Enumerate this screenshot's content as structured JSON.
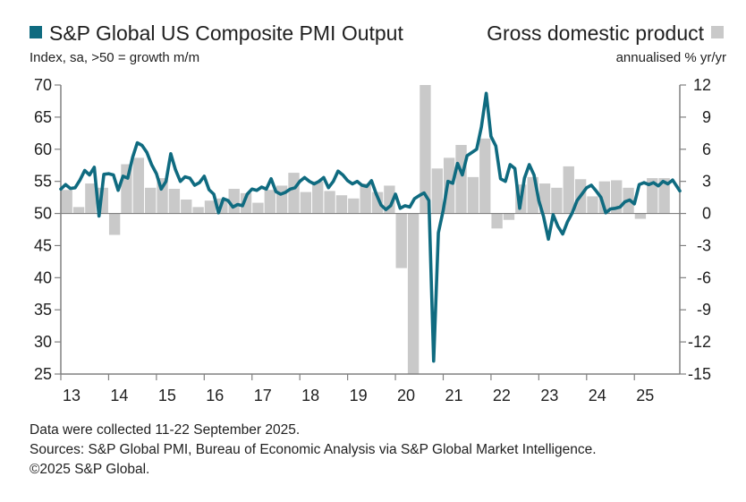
{
  "chart_data": {
    "type": "bar+line",
    "title_left": "S&P Global US Composite PMI Output",
    "subtitle_left": "Index, sa, >50 = growth m/m",
    "title_right": "Gross domestic product",
    "subtitle_right": "annualised % yr/yr",
    "colors": {
      "line": "#0f6b80",
      "bars": "#c9c9c9",
      "axis": "#808080"
    },
    "x_ticks": [
      "13",
      "14",
      "15",
      "16",
      "17",
      "18",
      "19",
      "20",
      "21",
      "22",
      "23",
      "24",
      "25"
    ],
    "x_range": [
      2013.0,
      2025.95
    ],
    "y_left": {
      "label": "Index",
      "ylim": [
        25,
        70
      ],
      "ticks": [
        "70",
        "65",
        "60",
        "55",
        "50",
        "45",
        "40",
        "35",
        "30",
        "25"
      ]
    },
    "y_right": {
      "label": "% yr/yr",
      "ylim": [
        -15,
        12
      ],
      "ticks": [
        "12",
        "9",
        "6",
        "3",
        "0",
        "-3",
        "-6",
        "-9",
        "-12",
        "-15"
      ]
    },
    "series": [
      {
        "name": "Gross domestic product",
        "axis": "right",
        "kind": "bar",
        "quarters": [
          "2013Q1",
          "2013Q2",
          "2013Q3",
          "2013Q4",
          "2014Q1",
          "2014Q2",
          "2014Q3",
          "2014Q4",
          "2015Q1",
          "2015Q2",
          "2015Q3",
          "2015Q4",
          "2016Q1",
          "2016Q2",
          "2016Q3",
          "2016Q4",
          "2017Q1",
          "2017Q2",
          "2017Q3",
          "2017Q4",
          "2018Q1",
          "2018Q2",
          "2018Q3",
          "2018Q4",
          "2019Q1",
          "2019Q2",
          "2019Q3",
          "2019Q4",
          "2020Q1",
          "2020Q2",
          "2020Q3",
          "2020Q4",
          "2021Q1",
          "2021Q2",
          "2021Q3",
          "2021Q4",
          "2022Q1",
          "2022Q2",
          "2022Q3",
          "2022Q4",
          "2023Q1",
          "2023Q2",
          "2023Q3",
          "2023Q4",
          "2024Q1",
          "2024Q2",
          "2024Q3",
          "2024Q4",
          "2025Q1",
          "2025Q2",
          "2025Q3"
        ],
        "values": [
          2.2,
          0.6,
          2.8,
          2.4,
          -2.0,
          4.6,
          5.2,
          2.4,
          3.3,
          2.3,
          1.3,
          0.6,
          1.2,
          1.4,
          2.3,
          1.9,
          1.0,
          2.2,
          2.6,
          3.8,
          2.0,
          3.0,
          2.1,
          1.7,
          1.4,
          2.8,
          2.0,
          2.6,
          -5.1,
          -15.0,
          12.0,
          4.2,
          5.2,
          6.4,
          3.4,
          7.0,
          -1.4,
          -0.6,
          2.7,
          3.4,
          2.8,
          2.4,
          4.4,
          3.2,
          1.6,
          3.0,
          3.1,
          2.4,
          -0.5,
          3.3,
          3.3
        ]
      },
      {
        "name": "S&P Global US Composite PMI Output",
        "axis": "left",
        "kind": "line",
        "points": [
          [
            2013.0,
            53.8
          ],
          [
            2013.1,
            54.5
          ],
          [
            2013.2,
            53.9
          ],
          [
            2013.3,
            54.0
          ],
          [
            2013.4,
            55.2
          ],
          [
            2013.5,
            56.7
          ],
          [
            2013.6,
            56.0
          ],
          [
            2013.7,
            57.2
          ],
          [
            2013.8,
            49.6
          ],
          [
            2013.9,
            56.1
          ],
          [
            2014.0,
            56.2
          ],
          [
            2014.1,
            56.0
          ],
          [
            2014.2,
            53.6
          ],
          [
            2014.3,
            55.8
          ],
          [
            2014.4,
            55.5
          ],
          [
            2014.5,
            58.7
          ],
          [
            2014.6,
            61.0
          ],
          [
            2014.7,
            60.6
          ],
          [
            2014.8,
            59.5
          ],
          [
            2014.9,
            57.6
          ],
          [
            2015.0,
            56.2
          ],
          [
            2015.1,
            53.8
          ],
          [
            2015.2,
            55.0
          ],
          [
            2015.3,
            59.3
          ],
          [
            2015.4,
            56.8
          ],
          [
            2015.5,
            55.0
          ],
          [
            2015.6,
            55.7
          ],
          [
            2015.7,
            55.5
          ],
          [
            2015.8,
            54.4
          ],
          [
            2015.9,
            54.8
          ],
          [
            2016.0,
            55.8
          ],
          [
            2016.1,
            53.7
          ],
          [
            2016.2,
            53.0
          ],
          [
            2016.3,
            50.1
          ],
          [
            2016.4,
            52.3
          ],
          [
            2016.5,
            52.0
          ],
          [
            2016.6,
            51.0
          ],
          [
            2016.7,
            51.4
          ],
          [
            2016.8,
            51.2
          ],
          [
            2016.9,
            53.0
          ],
          [
            2017.0,
            53.8
          ],
          [
            2017.1,
            53.6
          ],
          [
            2017.2,
            54.1
          ],
          [
            2017.3,
            53.8
          ],
          [
            2017.4,
            55.4
          ],
          [
            2017.5,
            53.4
          ],
          [
            2017.6,
            53.0
          ],
          [
            2017.7,
            53.3
          ],
          [
            2017.8,
            53.8
          ],
          [
            2017.9,
            54.0
          ],
          [
            2018.0,
            55.0
          ],
          [
            2018.1,
            55.6
          ],
          [
            2018.2,
            55.0
          ],
          [
            2018.3,
            54.6
          ],
          [
            2018.4,
            55.0
          ],
          [
            2018.5,
            55.6
          ],
          [
            2018.6,
            54.0
          ],
          [
            2018.7,
            55.0
          ],
          [
            2018.8,
            56.6
          ],
          [
            2018.9,
            56.0
          ],
          [
            2019.0,
            55.1
          ],
          [
            2019.1,
            54.6
          ],
          [
            2019.2,
            55.0
          ],
          [
            2019.3,
            54.4
          ],
          [
            2019.4,
            54.2
          ],
          [
            2019.5,
            55.1
          ],
          [
            2019.6,
            53.0
          ],
          [
            2019.7,
            51.3
          ],
          [
            2019.8,
            50.6
          ],
          [
            2019.9,
            51.2
          ],
          [
            2020.0,
            53.0
          ],
          [
            2020.1,
            50.8
          ],
          [
            2020.2,
            51.2
          ],
          [
            2020.3,
            51.0
          ],
          [
            2020.4,
            52.3
          ],
          [
            2020.5,
            52.8
          ],
          [
            2020.6,
            53.2
          ],
          [
            2020.7,
            52.0
          ],
          [
            2020.8,
            27.0
          ],
          [
            2020.9,
            47.0
          ],
          [
            2021.0,
            50.5
          ],
          [
            2021.1,
            55.0
          ],
          [
            2021.2,
            54.7
          ],
          [
            2021.3,
            57.8
          ],
          [
            2021.4,
            56.0
          ],
          [
            2021.5,
            59.0
          ],
          [
            2021.6,
            59.5
          ],
          [
            2021.7,
            60.0
          ],
          [
            2021.8,
            63.5
          ],
          [
            2021.9,
            68.7
          ],
          [
            2022.0,
            62.0
          ],
          [
            2022.1,
            60.5
          ],
          [
            2022.2,
            55.4
          ],
          [
            2022.3,
            55.0
          ],
          [
            2022.4,
            57.6
          ],
          [
            2022.5,
            57.0
          ],
          [
            2022.6,
            50.8
          ],
          [
            2022.7,
            55.5
          ],
          [
            2022.8,
            57.6
          ],
          [
            2022.9,
            56.0
          ],
          [
            2023.0,
            52.0
          ],
          [
            2023.1,
            49.5
          ],
          [
            2023.2,
            46.0
          ],
          [
            2023.3,
            49.8
          ],
          [
            2023.4,
            48.0
          ],
          [
            2023.5,
            46.8
          ],
          [
            2023.6,
            48.7
          ],
          [
            2023.7,
            50.1
          ],
          [
            2023.8,
            52.0
          ],
          [
            2023.9,
            53.0
          ],
          [
            2024.0,
            54.0
          ],
          [
            2024.1,
            54.4
          ],
          [
            2024.2,
            53.5
          ],
          [
            2024.3,
            52.5
          ],
          [
            2024.4,
            50.1
          ],
          [
            2024.5,
            50.7
          ],
          [
            2024.6,
            50.8
          ],
          [
            2024.7,
            51.0
          ],
          [
            2024.8,
            51.8
          ],
          [
            2024.9,
            52.1
          ],
          [
            2025.0,
            51.5
          ],
          [
            2025.1,
            54.5
          ],
          [
            2025.2,
            54.8
          ],
          [
            2025.3,
            54.5
          ],
          [
            2025.4,
            54.8
          ],
          [
            2025.5,
            54.3
          ],
          [
            2025.6,
            55.0
          ],
          [
            2025.7,
            54.6
          ],
          [
            2025.8,
            55.2
          ],
          [
            2025.95,
            53.5
          ]
        ]
      }
    ]
  },
  "footnotes": {
    "line1": "Data were collected 11-22 September 2025.",
    "line2": "Sources: S&P Global PMI, Bureau of Economic Analysis via S&P Global Market Intelligence.",
    "line3": "©2025 S&P Global."
  }
}
